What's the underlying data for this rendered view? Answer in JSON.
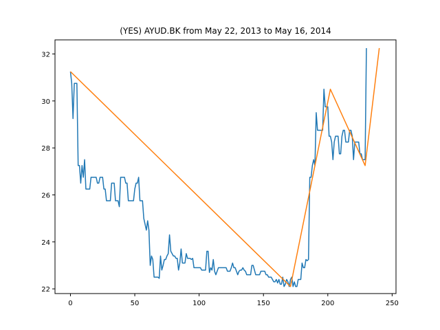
{
  "chart_data": {
    "type": "line",
    "title": "(YES) AYUD.BK from May 22, 2013 to May 16, 2014",
    "xlabel": "",
    "ylabel": "",
    "xlim": [
      -12,
      253
    ],
    "ylim": [
      21.8,
      32.6
    ],
    "xticks": [
      0,
      50,
      100,
      150,
      200,
      250
    ],
    "yticks": [
      22,
      24,
      26,
      28,
      30,
      32
    ],
    "grid": false,
    "series": [
      {
        "color": "#1f77b4",
        "points": [
          [
            0,
            31.25
          ],
          [
            1,
            30.75
          ],
          [
            2,
            29.25
          ],
          [
            3,
            30.75
          ],
          [
            4,
            30.75
          ],
          [
            5,
            30.75
          ],
          [
            6,
            27.25
          ],
          [
            7,
            27.25
          ],
          [
            8,
            26.5
          ],
          [
            9,
            27.25
          ],
          [
            10,
            26.75
          ],
          [
            11,
            27.5
          ],
          [
            12,
            26.25
          ],
          [
            13,
            26.25
          ],
          [
            14,
            26.25
          ],
          [
            15,
            26.25
          ],
          [
            16,
            26.75
          ],
          [
            17,
            26.75
          ],
          [
            18,
            26.75
          ],
          [
            19,
            26.75
          ],
          [
            20,
            26.75
          ],
          [
            21,
            26.5
          ],
          [
            22,
            26.5
          ],
          [
            23,
            26.75
          ],
          [
            24,
            26.75
          ],
          [
            25,
            26.75
          ],
          [
            26,
            26.25
          ],
          [
            27,
            26.25
          ],
          [
            28,
            25.75
          ],
          [
            29,
            25.75
          ],
          [
            30,
            25.75
          ],
          [
            31,
            25.75
          ],
          [
            32,
            26.5
          ],
          [
            33,
            26.5
          ],
          [
            34,
            26.5
          ],
          [
            35,
            25.75
          ],
          [
            36,
            25.75
          ],
          [
            37,
            25.75
          ],
          [
            38,
            25.5
          ],
          [
            39,
            26.75
          ],
          [
            40,
            26.75
          ],
          [
            41,
            26.75
          ],
          [
            42,
            26.75
          ],
          [
            43,
            26.5
          ],
          [
            44,
            26.5
          ],
          [
            45,
            25.75
          ],
          [
            46,
            25.75
          ],
          [
            47,
            25.75
          ],
          [
            48,
            25.75
          ],
          [
            49,
            25.75
          ],
          [
            50,
            26.25
          ],
          [
            51,
            26.5
          ],
          [
            52,
            26.5
          ],
          [
            53,
            26.75
          ],
          [
            54,
            25.75
          ],
          [
            55,
            25.75
          ],
          [
            56,
            25.75
          ],
          [
            57,
            25.0
          ],
          [
            58,
            24.75
          ],
          [
            59,
            24.5
          ],
          [
            60,
            24.9
          ],
          [
            61,
            24.5
          ],
          [
            62,
            23.0
          ],
          [
            63,
            23.4
          ],
          [
            64,
            23.25
          ],
          [
            65,
            22.5
          ],
          [
            66,
            22.5
          ],
          [
            67,
            22.5
          ],
          [
            68,
            22.5
          ],
          [
            69,
            22.45
          ],
          [
            70,
            23.4
          ],
          [
            71,
            22.8
          ],
          [
            72,
            23.0
          ],
          [
            73,
            23.25
          ],
          [
            74,
            23.25
          ],
          [
            75,
            23.4
          ],
          [
            76,
            23.5
          ],
          [
            77,
            24.3
          ],
          [
            78,
            23.6
          ],
          [
            79,
            23.5
          ],
          [
            80,
            23.4
          ],
          [
            81,
            23.4
          ],
          [
            82,
            23.3
          ],
          [
            83,
            23.3
          ],
          [
            84,
            22.8
          ],
          [
            85,
            23.1
          ],
          [
            86,
            23.7
          ],
          [
            87,
            23.1
          ],
          [
            88,
            23.1
          ],
          [
            89,
            23.1
          ],
          [
            90,
            23.5
          ],
          [
            91,
            23.3
          ],
          [
            92,
            23.3
          ],
          [
            93,
            23.3
          ],
          [
            94,
            23.25
          ],
          [
            95,
            23.3
          ],
          [
            96,
            22.9
          ],
          [
            97,
            22.9
          ],
          [
            98,
            22.9
          ],
          [
            99,
            22.9
          ],
          [
            100,
            22.9
          ],
          [
            101,
            22.9
          ],
          [
            102,
            22.8
          ],
          [
            103,
            22.8
          ],
          [
            104,
            22.8
          ],
          [
            105,
            22.8
          ],
          [
            106,
            23.6
          ],
          [
            107,
            23.6
          ],
          [
            108,
            22.7
          ],
          [
            109,
            22.9
          ],
          [
            110,
            22.8
          ],
          [
            111,
            23.25
          ],
          [
            112,
            22.75
          ],
          [
            113,
            22.6
          ],
          [
            114,
            22.75
          ],
          [
            115,
            22.9
          ],
          [
            116,
            22.9
          ],
          [
            117,
            22.9
          ],
          [
            118,
            22.9
          ],
          [
            119,
            22.9
          ],
          [
            120,
            22.9
          ],
          [
            121,
            22.9
          ],
          [
            122,
            22.75
          ],
          [
            123,
            22.75
          ],
          [
            124,
            22.75
          ],
          [
            125,
            22.9
          ],
          [
            126,
            23.1
          ],
          [
            127,
            22.9
          ],
          [
            128,
            22.9
          ],
          [
            129,
            22.75
          ],
          [
            130,
            22.6
          ],
          [
            131,
            22.75
          ],
          [
            132,
            22.8
          ],
          [
            133,
            22.8
          ],
          [
            134,
            22.9
          ],
          [
            135,
            22.8
          ],
          [
            136,
            22.75
          ],
          [
            137,
            22.6
          ],
          [
            138,
            22.6
          ],
          [
            139,
            22.6
          ],
          [
            140,
            22.6
          ],
          [
            141,
            23.0
          ],
          [
            142,
            23.0
          ],
          [
            143,
            22.8
          ],
          [
            144,
            22.6
          ],
          [
            145,
            22.6
          ],
          [
            146,
            22.6
          ],
          [
            147,
            22.6
          ],
          [
            148,
            22.75
          ],
          [
            149,
            22.75
          ],
          [
            150,
            22.75
          ],
          [
            151,
            22.75
          ],
          [
            152,
            22.6
          ],
          [
            153,
            22.6
          ],
          [
            154,
            22.5
          ],
          [
            155,
            22.5
          ],
          [
            156,
            22.5
          ],
          [
            157,
            22.4
          ],
          [
            158,
            22.3
          ],
          [
            159,
            22.3
          ],
          [
            160,
            22.4
          ],
          [
            161,
            22.25
          ],
          [
            162,
            22.4
          ],
          [
            163,
            22.2
          ],
          [
            164,
            22.2
          ],
          [
            165,
            22.5
          ],
          [
            166,
            22.1
          ],
          [
            167,
            22.2
          ],
          [
            168,
            22.4
          ],
          [
            169,
            22.3
          ],
          [
            170,
            22.1
          ],
          [
            171,
            22.4
          ],
          [
            172,
            22.5
          ],
          [
            173,
            22.1
          ],
          [
            174,
            22.3
          ],
          [
            175,
            22.1
          ],
          [
            176,
            22.1
          ],
          [
            177,
            22.4
          ],
          [
            178,
            22.4
          ],
          [
            179,
            22.4
          ],
          [
            180,
            23.1
          ],
          [
            181,
            22.9
          ],
          [
            182,
            22.9
          ],
          [
            183,
            23.25
          ],
          [
            184,
            23.2
          ],
          [
            185,
            23.25
          ],
          [
            186,
            26.75
          ],
          [
            187,
            26.75
          ],
          [
            188,
            27.25
          ],
          [
            189,
            27.5
          ],
          [
            190,
            27.25
          ],
          [
            191,
            29.5
          ],
          [
            192,
            28.75
          ],
          [
            193,
            28.75
          ],
          [
            194,
            28.75
          ],
          [
            195,
            28.75
          ],
          [
            196,
            28.75
          ],
          [
            197,
            30.5
          ],
          [
            198,
            29.75
          ],
          [
            199,
            29.75
          ],
          [
            200,
            29.75
          ],
          [
            201,
            28.5
          ],
          [
            202,
            28.5
          ],
          [
            203,
            28.25
          ],
          [
            204,
            27.5
          ],
          [
            205,
            28.25
          ],
          [
            206,
            28.5
          ],
          [
            207,
            28.5
          ],
          [
            208,
            28.5
          ],
          [
            209,
            27.75
          ],
          [
            210,
            27.75
          ],
          [
            211,
            28.5
          ],
          [
            212,
            28.75
          ],
          [
            213,
            28.75
          ],
          [
            214,
            28.25
          ],
          [
            215,
            28.25
          ],
          [
            216,
            28.25
          ],
          [
            217,
            28.75
          ],
          [
            218,
            28.75
          ],
          [
            219,
            28.5
          ],
          [
            220,
            27.5
          ],
          [
            221,
            28.25
          ],
          [
            222,
            28.25
          ],
          [
            223,
            28.25
          ],
          [
            224,
            28.25
          ],
          [
            225,
            27.75
          ],
          [
            226,
            27.75
          ],
          [
            227,
            27.5
          ],
          [
            228,
            27.5
          ],
          [
            229,
            27.5
          ],
          [
            230,
            32.25
          ]
        ]
      },
      {
        "color": "#ff7f0e",
        "points": [
          [
            0,
            31.25
          ],
          [
            171,
            22.1
          ],
          [
            202,
            30.5
          ],
          [
            229,
            27.25
          ],
          [
            240,
            32.25
          ]
        ]
      }
    ]
  }
}
